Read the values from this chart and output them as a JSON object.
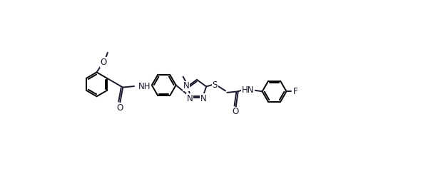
{
  "background_color": "#ffffff",
  "line_color": "#1a1a2e",
  "line_width": 1.4,
  "font_size": 8.5,
  "figsize": [
    6.28,
    2.61
  ],
  "dpi": 100,
  "xlim": [
    0,
    628
  ],
  "ylim": [
    0,
    261
  ]
}
